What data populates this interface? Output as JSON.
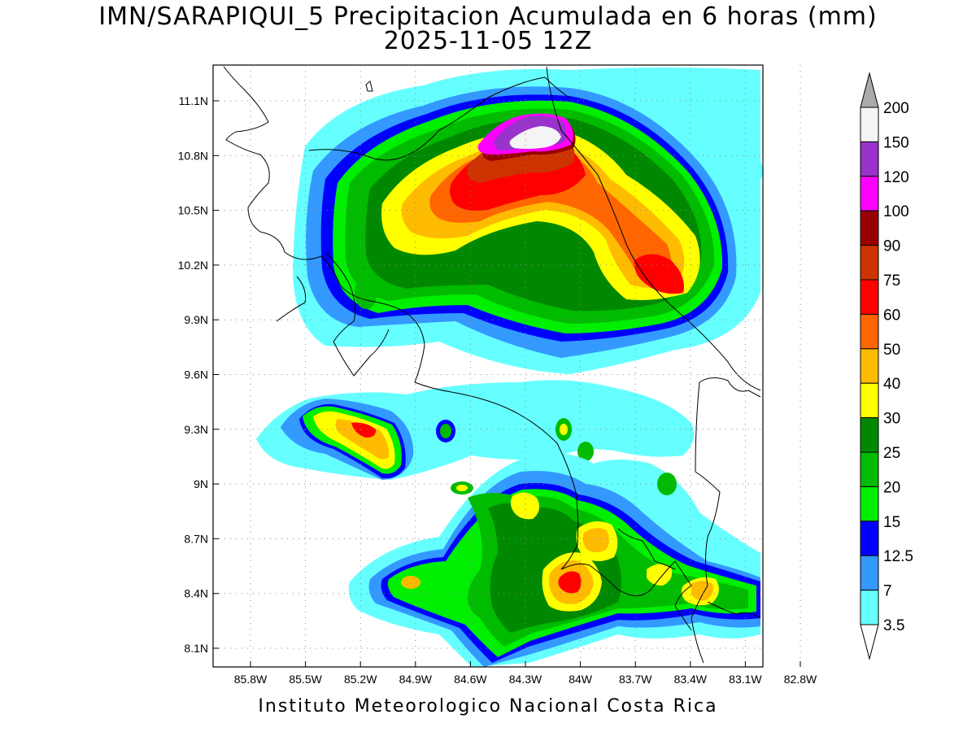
{
  "header": {
    "title_line1": "IMN/SARAPIQUI_5 Precipitacion Acumulada en 6 horas (mm)",
    "title_line2": "2025-11-05 12Z"
  },
  "footer": {
    "credit": "Instituto Meteorologico Nacional Costa Rica"
  },
  "map": {
    "lat_ticks": [
      "11.1N",
      "10.8N",
      "10.5N",
      "10.2N",
      "9.9N",
      "9.6N",
      "9.3N",
      "9N",
      "8.7N",
      "8.4N",
      "8.1N"
    ],
    "lon_ticks": [
      "85.8W",
      "85.5W",
      "85.2W",
      "84.9W",
      "84.6W",
      "84.3W",
      "84W",
      "83.7W",
      "83.4W",
      "83.1W",
      "82.8W"
    ]
  },
  "colorbar": {
    "unit": "mm",
    "levels": [
      "200",
      "150",
      "120",
      "100",
      "90",
      "75",
      "60",
      "50",
      "40",
      "30",
      "25",
      "20",
      "15",
      "12.5",
      "7",
      "3.5"
    ],
    "colors": [
      "#f4f4f4",
      "#9933cc",
      "#ff00ff",
      "#990000",
      "#cc3300",
      "#ff0000",
      "#ff6600",
      "#ffbb00",
      "#ffff00",
      "#008800",
      "#00bb00",
      "#00ee00",
      "#0000ff",
      "#3399ff",
      "#66ffff"
    ],
    "top_arrow_color": "#aaaaaa",
    "bottom_arrow_color": "#ffffff"
  },
  "palette": {
    "c3_5": "#66ffff",
    "c7": "#3399ff",
    "c12_5": "#0000ff",
    "c15": "#00ee00",
    "c20": "#00bb00",
    "c25": "#008800",
    "c30": "#ffff00",
    "c40": "#ffbb00",
    "c50": "#ff6600",
    "c60": "#ff0000",
    "c75": "#cc3300",
    "c90": "#990000",
    "c100": "#ff00ff",
    "c120": "#9933cc",
    "c150": "#f4f4f4"
  }
}
